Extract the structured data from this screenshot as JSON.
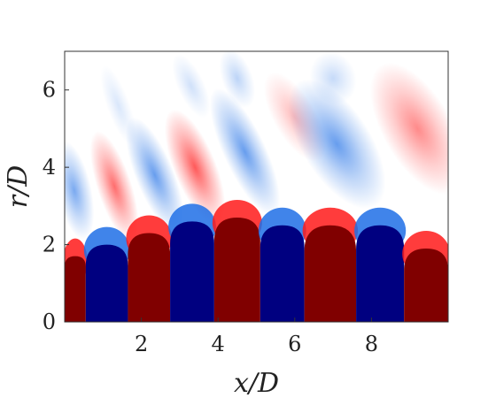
{
  "chart_data": {
    "type": "heatmap",
    "title": "",
    "xlabel": "x/D",
    "ylabel": "r/D",
    "xlim": [
      0,
      10
    ],
    "ylim": [
      0,
      7
    ],
    "x_ticks": [
      2,
      4,
      6,
      8
    ],
    "x_tick_labels": [
      "2",
      "4",
      "6",
      "8"
    ],
    "y_ticks": [
      0,
      2,
      4,
      6
    ],
    "y_tick_labels": [
      "0",
      "2",
      "4",
      "6"
    ],
    "grid": false,
    "legend": "none",
    "colormap": {
      "negative": "#000080",
      "mid_negative": "#1f6fe6",
      "zero": "#ffffff",
      "mid_positive": "#ff1a1a",
      "positive": "#800000"
    },
    "core_height": 2.3,
    "bands": [
      {
        "sign": "positive",
        "x_start": 0.0,
        "x_end": 0.55,
        "core_top": 1.7
      },
      {
        "sign": "negative",
        "x_start": 0.55,
        "x_end": 1.65,
        "core_top": 2.0
      },
      {
        "sign": "positive",
        "x_start": 1.65,
        "x_end": 2.75,
        "core_top": 2.3
      },
      {
        "sign": "negative",
        "x_start": 2.75,
        "x_end": 3.9,
        "core_top": 2.6
      },
      {
        "sign": "positive",
        "x_start": 3.9,
        "x_end": 5.1,
        "core_top": 2.7
      },
      {
        "sign": "negative",
        "x_start": 5.1,
        "x_end": 6.25,
        "core_top": 2.5
      },
      {
        "sign": "positive",
        "x_start": 6.25,
        "x_end": 7.6,
        "core_top": 2.5
      },
      {
        "sign": "negative",
        "x_start": 7.6,
        "x_end": 8.85,
        "core_top": 2.5
      },
      {
        "sign": "positive",
        "x_start": 8.85,
        "x_end": 10.0,
        "core_top": 1.9
      }
    ],
    "lobes": [
      {
        "sign": "negative",
        "x": 0.25,
        "r": 3.4,
        "rx": 0.45,
        "ry": 1.3,
        "tilt": -12,
        "strength": 0.7
      },
      {
        "sign": "positive",
        "x": 1.3,
        "r": 3.5,
        "rx": 0.45,
        "ry": 1.5,
        "tilt": -18,
        "strength": 0.75
      },
      {
        "sign": "negative",
        "x": 1.4,
        "r": 5.6,
        "rx": 0.3,
        "ry": 1.1,
        "tilt": -20,
        "strength": 0.2
      },
      {
        "sign": "negative",
        "x": 2.35,
        "r": 3.8,
        "rx": 0.5,
        "ry": 1.6,
        "tilt": -22,
        "strength": 0.8
      },
      {
        "sign": "positive",
        "x": 3.4,
        "r": 4.0,
        "rx": 0.55,
        "ry": 1.6,
        "tilt": -22,
        "strength": 0.85
      },
      {
        "sign": "negative",
        "x": 3.3,
        "r": 6.1,
        "rx": 0.35,
        "ry": 0.9,
        "tilt": -25,
        "strength": 0.25
      },
      {
        "sign": "negative",
        "x": 4.7,
        "r": 4.4,
        "rx": 0.55,
        "ry": 1.8,
        "tilt": -25,
        "strength": 0.8
      },
      {
        "sign": "negative",
        "x": 4.5,
        "r": 6.3,
        "rx": 0.4,
        "ry": 0.8,
        "tilt": -20,
        "strength": 0.35
      },
      {
        "sign": "positive",
        "x": 6.0,
        "r": 5.3,
        "rx": 0.55,
        "ry": 1.3,
        "tilt": -30,
        "strength": 0.35
      },
      {
        "sign": "negative",
        "x": 7.1,
        "r": 4.6,
        "rx": 0.9,
        "ry": 1.9,
        "tilt": -32,
        "strength": 0.8
      },
      {
        "sign": "negative",
        "x": 7.0,
        "r": 6.3,
        "rx": 0.6,
        "ry": 0.7,
        "tilt": -20,
        "strength": 0.3
      },
      {
        "sign": "positive",
        "x": 9.2,
        "r": 5.0,
        "rx": 0.9,
        "ry": 1.9,
        "tilt": -30,
        "strength": 0.6
      }
    ]
  }
}
